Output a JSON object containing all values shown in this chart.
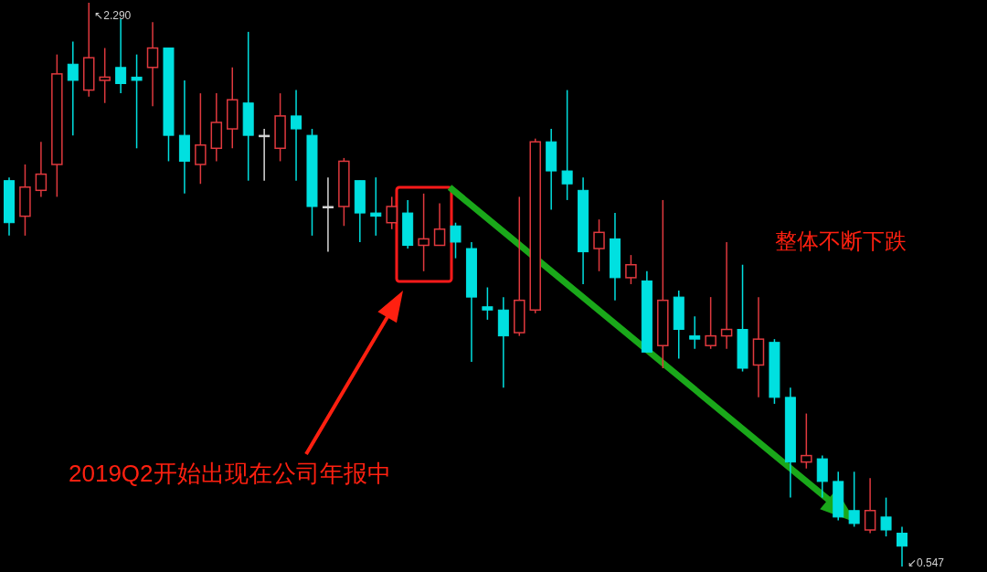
{
  "chart_data": {
    "type": "candlestick",
    "categories": [
      null,
      null,
      null,
      null,
      null,
      null,
      null,
      null,
      null,
      null,
      null,
      null,
      null,
      null,
      null,
      null,
      null,
      null,
      null,
      null,
      null,
      null,
      null,
      null,
      null,
      null,
      null,
      null,
      null,
      null,
      null,
      null,
      null,
      null,
      null,
      null,
      null,
      null,
      null,
      null,
      null,
      null,
      null,
      null,
      null,
      null,
      null,
      null,
      null,
      null,
      null,
      null,
      null,
      null,
      null,
      null,
      null
    ],
    "ohlc": [
      [
        1.74,
        1.75,
        1.57,
        1.61
      ],
      [
        1.63,
        1.79,
        1.57,
        1.72
      ],
      [
        1.71,
        1.86,
        1.69,
        1.76
      ],
      [
        1.79,
        2.13,
        1.69,
        2.07
      ],
      [
        2.1,
        2.17,
        1.88,
        2.05
      ],
      [
        2.02,
        2.29,
        2.0,
        2.12
      ],
      [
        2.05,
        2.15,
        1.98,
        2.06
      ],
      [
        2.09,
        2.24,
        2.01,
        2.04
      ],
      [
        2.06,
        2.13,
        1.84,
        2.05
      ],
      [
        2.09,
        2.23,
        1.97,
        2.15
      ],
      [
        2.15,
        2.15,
        1.8,
        1.88
      ],
      [
        1.88,
        2.05,
        1.7,
        1.8
      ],
      [
        1.79,
        2.01,
        1.73,
        1.85
      ],
      [
        1.84,
        2.01,
        1.8,
        1.92
      ],
      [
        1.9,
        2.09,
        1.84,
        1.99
      ],
      [
        1.98,
        2.2,
        1.74,
        1.88
      ],
      [
        1.88,
        1.9,
        1.74,
        1.88
      ],
      [
        1.84,
        2.01,
        1.8,
        1.94
      ],
      [
        1.94,
        2.02,
        1.74,
        1.9
      ],
      [
        1.88,
        1.9,
        1.57,
        1.66
      ],
      [
        1.66,
        1.75,
        1.52,
        1.66
      ],
      [
        1.66,
        1.81,
        1.6,
        1.8
      ],
      [
        1.74,
        1.74,
        1.55,
        1.64
      ],
      [
        1.64,
        1.75,
        1.57,
        1.63
      ],
      [
        1.61,
        1.69,
        1.59,
        1.66
      ],
      [
        1.64,
        1.68,
        1.53,
        1.54
      ],
      [
        1.54,
        1.7,
        1.46,
        1.56
      ],
      [
        1.54,
        1.67,
        1.54,
        1.59
      ],
      [
        1.6,
        1.61,
        1.5,
        1.55
      ],
      [
        1.53,
        1.55,
        1.18,
        1.38
      ],
      [
        1.35,
        1.41,
        1.31,
        1.34
      ],
      [
        1.34,
        1.38,
        1.1,
        1.26
      ],
      [
        1.27,
        1.69,
        1.26,
        1.37
      ],
      [
        1.34,
        1.87,
        1.33,
        1.86
      ],
      [
        1.86,
        1.9,
        1.65,
        1.77
      ],
      [
        1.77,
        2.02,
        1.68,
        1.73
      ],
      [
        1.71,
        1.75,
        1.42,
        1.52
      ],
      [
        1.53,
        1.62,
        1.46,
        1.58
      ],
      [
        1.56,
        1.64,
        1.37,
        1.44
      ],
      [
        1.44,
        1.51,
        1.42,
        1.48
      ],
      [
        1.43,
        1.46,
        1.21,
        1.21
      ],
      [
        1.23,
        1.68,
        1.16,
        1.37
      ],
      [
        1.38,
        1.4,
        1.19,
        1.28
      ],
      [
        1.26,
        1.32,
        1.22,
        1.25
      ],
      [
        1.23,
        1.38,
        1.22,
        1.26
      ],
      [
        1.26,
        1.55,
        1.22,
        1.28
      ],
      [
        1.28,
        1.48,
        1.15,
        1.16
      ],
      [
        1.17,
        1.38,
        1.07,
        1.25
      ],
      [
        1.24,
        1.25,
        1.05,
        1.07
      ],
      [
        1.07,
        1.1,
        0.76,
        0.87
      ],
      [
        0.87,
        1.02,
        0.85,
        0.89
      ],
      [
        0.88,
        0.89,
        0.76,
        0.81
      ],
      [
        0.81,
        0.84,
        0.69,
        0.7
      ],
      [
        0.72,
        0.84,
        0.67,
        0.68
      ],
      [
        0.66,
        0.82,
        0.65,
        0.72
      ],
      [
        0.7,
        0.76,
        0.64,
        0.66
      ],
      [
        0.65,
        0.67,
        0.547,
        0.61
      ]
    ],
    "colors": [
      "#00e0e0",
      "#e0393e",
      "#e0393e",
      "#e0393e",
      "#00e0e0",
      "#e0393e",
      "#e0393e",
      "#00e0e0",
      "#00e0e0",
      "#e0393e",
      "#00e0e0",
      "#00e0e0",
      "#e0393e",
      "#e0393e",
      "#e0393e",
      "#00e0e0",
      "#d8d8d8",
      "#e0393e",
      "#00e0e0",
      "#00e0e0",
      "#d8d8d8",
      "#e0393e",
      "#00e0e0",
      "#00e0e0",
      "#e0393e",
      "#00e0e0",
      "#e0393e",
      "#e0393e",
      "#00e0e0",
      "#00e0e0",
      "#00e0e0",
      "#00e0e0",
      "#e0393e",
      "#e0393e",
      "#00e0e0",
      "#00e0e0",
      "#00e0e0",
      "#e0393e",
      "#00e0e0",
      "#e0393e",
      "#00e0e0",
      "#e0393e",
      "#00e0e0",
      "#00e0e0",
      "#e0393e",
      "#e0393e",
      "#00e0e0",
      "#e0393e",
      "#00e0e0",
      "#00e0e0",
      "#e0393e",
      "#00e0e0",
      "#00e0e0",
      "#00e0e0",
      "#e0393e",
      "#00e0e0",
      "#00e0e0"
    ],
    "annotations": [
      "↖2.290",
      "↙0.547",
      "2019Q2开始出现在公司年报中",
      "整体不断下跌"
    ]
  }
}
